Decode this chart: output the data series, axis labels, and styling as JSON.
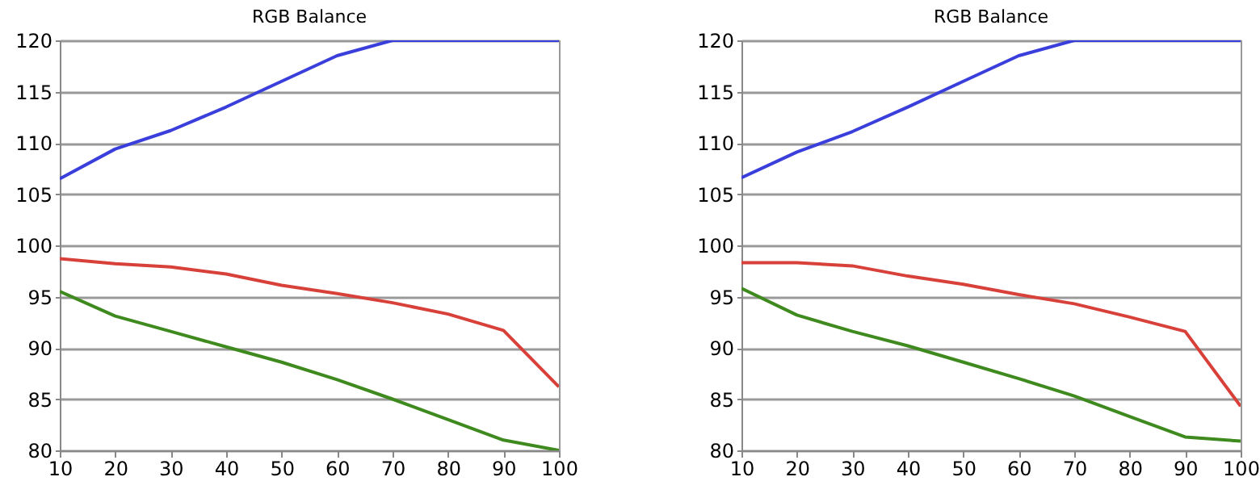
{
  "chart_data": [
    {
      "type": "line",
      "title": "RGB Balance",
      "x": [
        10,
        20,
        30,
        40,
        50,
        60,
        70,
        80,
        90,
        100
      ],
      "xlim": [
        10,
        100
      ],
      "xticks": [
        10,
        20,
        30,
        40,
        50,
        60,
        70,
        80,
        90,
        100
      ],
      "ylim": [
        80,
        120
      ],
      "yticks": [
        80,
        85,
        90,
        95,
        100,
        105,
        110,
        115,
        120
      ],
      "grid": "y",
      "series": [
        {
          "color": "#3a3fdc",
          "values": [
            106.5,
            109.4,
            111.2,
            113.5,
            116,
            118.5,
            120,
            120,
            120,
            120
          ]
        },
        {
          "color": "#d8403a",
          "values": [
            98.7,
            98.2,
            97.9,
            97.2,
            96.1,
            95.3,
            94.4,
            93.3,
            91.7,
            86.2
          ]
        },
        {
          "color": "#3f8a1e",
          "values": [
            95.5,
            93.1,
            91.6,
            90.1,
            88.6,
            86.9,
            85,
            83,
            81,
            80
          ]
        }
      ]
    },
    {
      "type": "line",
      "title": "RGB Balance",
      "x": [
        10,
        20,
        30,
        40,
        50,
        60,
        70,
        80,
        90,
        100
      ],
      "xlim": [
        10,
        100
      ],
      "xticks": [
        10,
        20,
        30,
        40,
        50,
        60,
        70,
        80,
        90,
        100
      ],
      "ylim": [
        80,
        120
      ],
      "yticks": [
        80,
        85,
        90,
        95,
        100,
        105,
        110,
        115,
        120
      ],
      "grid": "y",
      "series": [
        {
          "color": "#3a3fdc",
          "values": [
            106.6,
            109.1,
            111.1,
            113.5,
            116,
            118.5,
            120,
            120,
            120,
            120
          ]
        },
        {
          "color": "#d8403a",
          "values": [
            98.3,
            98.3,
            98,
            97,
            96.2,
            95.2,
            94.3,
            93,
            91.6,
            84.3
          ]
        },
        {
          "color": "#3f8a1e",
          "values": [
            95.8,
            93.2,
            91.6,
            90.2,
            88.6,
            87,
            85.3,
            83.3,
            81.3,
            80.9
          ]
        }
      ]
    }
  ]
}
